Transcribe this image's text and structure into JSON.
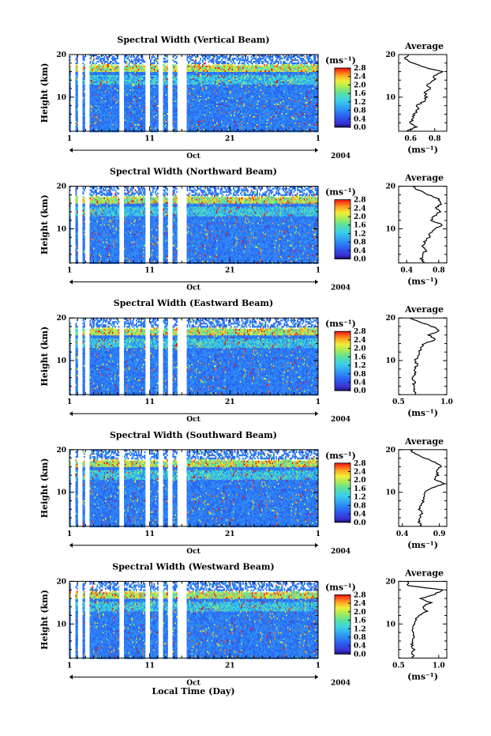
{
  "chart_data": {
    "type": "heatmap",
    "month": "Oct",
    "year": "2004",
    "x_tick_labels": [
      "1",
      "11",
      "21",
      "1"
    ],
    "xlabel_bottom": "Local Time (Day)",
    "ylabel": "Height (km)",
    "y_tick_labels": [
      "20",
      "10"
    ],
    "ylim": [
      2,
      20
    ],
    "colorbar": {
      "unit_label": "(ms⁻¹)",
      "tick_labels": [
        "0.0",
        "0.4",
        "0.8",
        "1.2",
        "1.6",
        "2.0",
        "2.4",
        "2.8"
      ],
      "range": [
        0.0,
        2.8
      ]
    },
    "average_panel_title": "Average",
    "average_xlabel": "(ms⁻¹)",
    "panels": [
      {
        "title": "Spectral Width (Vertical Beam)",
        "avg_xticks": [
          "0.6",
          "0.8"
        ],
        "avg_xlim": [
          0.5,
          0.9
        ],
        "avg_heights": [
          2,
          3,
          4,
          5,
          6,
          7,
          8,
          9,
          10,
          11,
          12,
          13,
          14,
          15,
          16,
          17,
          18,
          19,
          20
        ],
        "avg_values": [
          0.57,
          0.64,
          0.6,
          0.62,
          0.63,
          0.66,
          0.65,
          0.71,
          0.73,
          0.72,
          0.76,
          0.74,
          0.8,
          0.79,
          0.86,
          0.72,
          0.61,
          0.55,
          0.58
        ]
      },
      {
        "title": "Spectral Width (Northward Beam)",
        "avg_xticks": [
          "0.4",
          "0.8"
        ],
        "avg_xlim": [
          0.3,
          0.9
        ],
        "avg_heights": [
          2,
          3,
          4,
          5,
          6,
          7,
          8,
          9,
          10,
          11,
          12,
          13,
          14,
          15,
          16,
          17,
          18,
          19,
          20
        ],
        "avg_values": [
          0.62,
          0.58,
          0.61,
          0.64,
          0.6,
          0.63,
          0.68,
          0.7,
          0.74,
          0.85,
          0.7,
          0.74,
          0.82,
          0.76,
          0.84,
          0.79,
          0.67,
          0.55,
          0.47
        ]
      },
      {
        "title": "Spectral Width (Eastward Beam)",
        "avg_xticks": [
          "0.5",
          "1.0"
        ],
        "avg_xlim": [
          0.5,
          1.0
        ],
        "avg_heights": [
          2,
          3,
          4,
          5,
          6,
          7,
          8,
          9,
          10,
          11,
          12,
          13,
          14,
          15,
          16,
          17,
          18,
          19,
          20
        ],
        "avg_values": [
          0.68,
          0.66,
          0.65,
          0.67,
          0.64,
          0.67,
          0.66,
          0.69,
          0.67,
          0.7,
          0.72,
          0.73,
          0.76,
          0.89,
          0.81,
          0.93,
          0.85,
          0.72,
          0.62
        ]
      },
      {
        "title": "Spectral Width (Southward Beam)",
        "avg_xticks": [
          "0.4",
          "0.9"
        ],
        "avg_xlim": [
          0.35,
          1.0
        ],
        "avg_heights": [
          2,
          3,
          4,
          5,
          6,
          7,
          8,
          9,
          10,
          11,
          12,
          13,
          14,
          15,
          16,
          17,
          18,
          19,
          20
        ],
        "avg_values": [
          0.66,
          0.63,
          0.64,
          0.66,
          0.63,
          0.66,
          0.68,
          0.7,
          0.72,
          0.78,
          0.97,
          0.82,
          0.89,
          0.85,
          0.92,
          0.85,
          0.71,
          0.58,
          0.5
        ]
      },
      {
        "title": "Spectral Width (Westward Beam)",
        "avg_xticks": [
          "0.5",
          "1.0"
        ],
        "avg_xlim": [
          0.5,
          1.1
        ],
        "avg_heights": [
          2,
          3,
          4,
          5,
          6,
          7,
          8,
          9,
          10,
          11,
          12,
          13,
          14,
          15,
          16,
          17,
          18,
          19,
          20
        ],
        "avg_values": [
          0.68,
          0.67,
          0.69,
          0.67,
          0.66,
          0.68,
          0.68,
          0.67,
          0.7,
          0.71,
          0.74,
          0.86,
          0.79,
          0.9,
          0.78,
          0.95,
          1.05,
          0.62,
          0.6
        ]
      }
    ]
  }
}
